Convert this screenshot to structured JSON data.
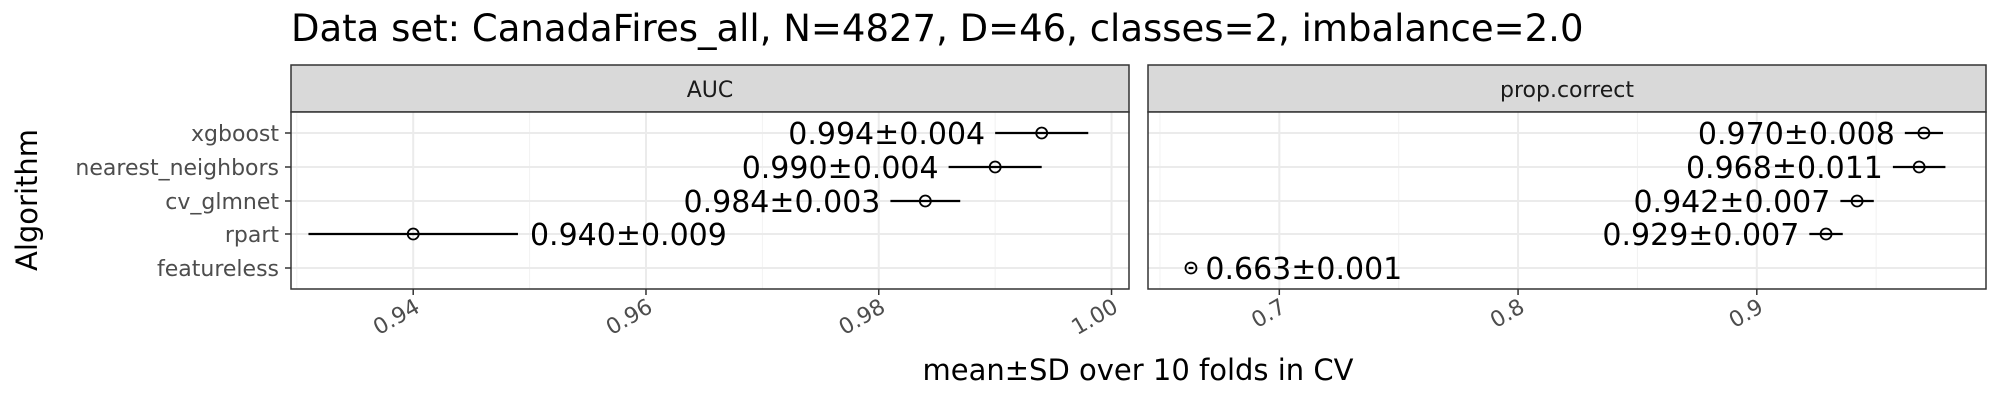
{
  "title": "Data set: CanadaFires_all, N=4827, D=46, classes=2, imbalance=2.0",
  "xlabel": "mean±SD over 10 folds in CV",
  "ylabel": "Algorithm",
  "chart_data": [
    {
      "type": "scatter",
      "panel": "AUC",
      "categories": [
        "xgboost",
        "nearest_neighbors",
        "cv_glmnet",
        "rpart",
        "featureless"
      ],
      "xlim": [
        0.9295,
        1.0015
      ],
      "xticks": [
        0.94,
        0.96,
        0.98,
        1.0
      ],
      "xtick_labels": [
        "0.94",
        "0.96",
        "0.98",
        "1.00"
      ],
      "points": [
        {
          "algorithm": "xgboost",
          "mean": 0.994,
          "sd": 0.004,
          "label": "0.994±0.004"
        },
        {
          "algorithm": "nearest_neighbors",
          "mean": 0.99,
          "sd": 0.004,
          "label": "0.990±0.004"
        },
        {
          "algorithm": "cv_glmnet",
          "mean": 0.984,
          "sd": 0.003,
          "label": "0.984±0.003"
        },
        {
          "algorithm": "rpart",
          "mean": 0.94,
          "sd": 0.009,
          "label": "0.940±0.009"
        }
      ],
      "grid": true
    },
    {
      "type": "scatter",
      "panel": "prop.correct",
      "categories": [
        "xgboost",
        "nearest_neighbors",
        "cv_glmnet",
        "rpart",
        "featureless"
      ],
      "xlim": [
        0.645,
        0.996
      ],
      "xticks": [
        0.7,
        0.8,
        0.9
      ],
      "xtick_labels": [
        "0.7",
        "0.8",
        "0.9"
      ],
      "points": [
        {
          "algorithm": "xgboost",
          "mean": 0.97,
          "sd": 0.008,
          "label": "0.970±0.008"
        },
        {
          "algorithm": "nearest_neighbors",
          "mean": 0.968,
          "sd": 0.011,
          "label": "0.968±0.011"
        },
        {
          "algorithm": "cv_glmnet",
          "mean": 0.942,
          "sd": 0.007,
          "label": "0.942±0.007"
        },
        {
          "algorithm": "rpart",
          "mean": 0.929,
          "sd": 0.007,
          "label": "0.929±0.007"
        },
        {
          "algorithm": "featureless",
          "mean": 0.663,
          "sd": 0.001,
          "label": "0.663±0.001"
        }
      ],
      "grid": true
    }
  ]
}
